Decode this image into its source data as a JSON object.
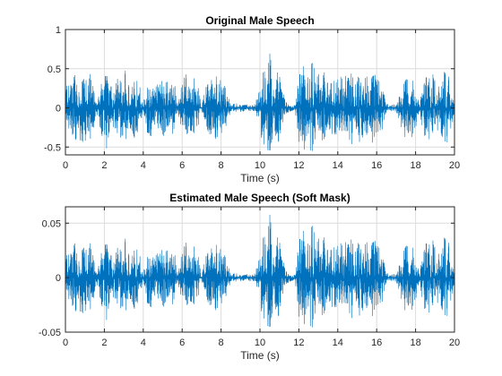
{
  "chart_data": [
    {
      "type": "line",
      "title": "Original Male Speech",
      "xlabel": "Time (s)",
      "ylabel": "",
      "xlim": [
        0,
        20
      ],
      "ylim": [
        -0.6,
        1
      ],
      "xticks": [
        0,
        2,
        4,
        6,
        8,
        10,
        12,
        14,
        16,
        18,
        20
      ],
      "xtick_labels": [
        "0",
        "2",
        "4",
        "6",
        "8",
        "10",
        "12",
        "14",
        "16",
        "18",
        "20"
      ],
      "yticks": [
        -0.5,
        0,
        0.5,
        1
      ],
      "ytick_labels": [
        "-0.5",
        "0",
        "0.5",
        "1"
      ],
      "grid": true,
      "series": [
        {
          "color": "#0072BD",
          "envelope": {
            "t": [
              0,
              0.2,
              0.5,
              0.7,
              0.9,
              1.1,
              1.3,
              1.6,
              1.9,
              2.1,
              2.3,
              2.5,
              2.7,
              2.9,
              3.1,
              3.3,
              3.5,
              3.8,
              4.0,
              4.2,
              4.4,
              4.6,
              4.8,
              5.0,
              5.2,
              5.4,
              5.6,
              5.8,
              6.0,
              6.2,
              6.4,
              6.6,
              6.8,
              7.0,
              7.2,
              7.4,
              7.6,
              7.8,
              8.0,
              8.2,
              8.5,
              8.8,
              9.1,
              9.4,
              9.7,
              9.9,
              10.1,
              10.3,
              10.5,
              10.7,
              10.9,
              11.1,
              11.3,
              11.5,
              11.8,
              12.1,
              12.3,
              12.5,
              12.7,
              12.9,
              13.1,
              13.3,
              13.5,
              13.7,
              13.9,
              14.1,
              14.3,
              14.5,
              14.7,
              14.9,
              15.1,
              15.3,
              15.5,
              15.7,
              15.9,
              16.1,
              16.3,
              16.5,
              16.8,
              17.0,
              17.2,
              17.4,
              17.6,
              17.8,
              18.0,
              18.2,
              18.4,
              18.6,
              18.8,
              19.0,
              19.2,
              19.4,
              19.6,
              19.8,
              20.0
            ],
            "amp": [
              0.25,
              0.32,
              0.45,
              0.36,
              0.48,
              0.42,
              0.45,
              0.05,
              0.38,
              0.52,
              0.32,
              0.3,
              0.42,
              0.47,
              0.45,
              0.28,
              0.4,
              0.32,
              0.06,
              0.3,
              0.4,
              0.22,
              0.42,
              0.35,
              0.4,
              0.38,
              0.3,
              0.05,
              0.42,
              0.4,
              0.32,
              0.37,
              0.35,
              0.05,
              0.3,
              0.36,
              0.4,
              0.44,
              0.38,
              0.3,
              0.05,
              0.06,
              0.05,
              0.04,
              0.05,
              0.15,
              0.52,
              0.45,
              0.72,
              0.3,
              0.55,
              0.35,
              0.1,
              0.05,
              0.04,
              0.58,
              0.5,
              0.4,
              0.7,
              0.32,
              0.55,
              0.44,
              0.38,
              0.42,
              0.35,
              0.45,
              0.38,
              0.4,
              0.5,
              0.3,
              0.45,
              0.4,
              0.42,
              0.38,
              0.5,
              0.36,
              0.3,
              0.05,
              0.04,
              0.05,
              0.18,
              0.4,
              0.35,
              0.38,
              0.25,
              0.06,
              0.4,
              0.42,
              0.45,
              0.35,
              0.3,
              0.4,
              0.55,
              0.3,
              0.06
            ]
          }
        }
      ]
    },
    {
      "type": "line",
      "title": "Estimated Male Speech (Soft Mask)",
      "xlabel": "Time (s)",
      "ylabel": "",
      "xlim": [
        0,
        20
      ],
      "ylim": [
        -0.05,
        0.065
      ],
      "xticks": [
        0,
        2,
        4,
        6,
        8,
        10,
        12,
        14,
        16,
        18,
        20
      ],
      "xtick_labels": [
        "0",
        "2",
        "4",
        "6",
        "8",
        "10",
        "12",
        "14",
        "16",
        "18",
        "20"
      ],
      "yticks": [
        -0.05,
        0,
        0.05
      ],
      "ytick_labels": [
        "-0.05",
        "0",
        "0.05"
      ],
      "grid": true,
      "series": [
        {
          "color": "#0072BD",
          "envelope": {
            "t": [
              0,
              0.2,
              0.5,
              0.7,
              0.9,
              1.1,
              1.3,
              1.6,
              1.9,
              2.1,
              2.3,
              2.5,
              2.7,
              2.9,
              3.1,
              3.3,
              3.5,
              3.8,
              4.0,
              4.2,
              4.4,
              4.6,
              4.8,
              5.0,
              5.2,
              5.4,
              5.6,
              5.8,
              6.0,
              6.2,
              6.4,
              6.6,
              6.8,
              7.0,
              7.2,
              7.4,
              7.6,
              7.8,
              8.0,
              8.2,
              8.5,
              8.8,
              9.1,
              9.4,
              9.7,
              9.9,
              10.1,
              10.3,
              10.5,
              10.7,
              10.9,
              11.1,
              11.3,
              11.5,
              11.8,
              12.1,
              12.3,
              12.5,
              12.7,
              12.9,
              13.1,
              13.3,
              13.5,
              13.7,
              13.9,
              14.1,
              14.3,
              14.5,
              14.7,
              14.9,
              15.1,
              15.3,
              15.5,
              15.7,
              15.9,
              16.1,
              16.3,
              16.5,
              16.8,
              17.0,
              17.2,
              17.4,
              17.6,
              17.8,
              18.0,
              18.2,
              18.4,
              18.6,
              18.8,
              19.0,
              19.2,
              19.4,
              19.6,
              19.8,
              20.0
            ],
            "amp": [
              0.018,
              0.024,
              0.034,
              0.027,
              0.036,
              0.03,
              0.033,
              0.004,
              0.028,
              0.039,
              0.024,
              0.022,
              0.031,
              0.035,
              0.034,
              0.021,
              0.03,
              0.024,
              0.004,
              0.022,
              0.03,
              0.017,
              0.031,
              0.026,
              0.03,
              0.028,
              0.022,
              0.004,
              0.031,
              0.03,
              0.024,
              0.028,
              0.026,
              0.004,
              0.022,
              0.027,
              0.03,
              0.033,
              0.028,
              0.022,
              0.004,
              0.004,
              0.003,
              0.003,
              0.004,
              0.012,
              0.042,
              0.036,
              0.06,
              0.024,
              0.045,
              0.028,
              0.008,
              0.004,
              0.003,
              0.048,
              0.04,
              0.032,
              0.058,
              0.026,
              0.046,
              0.036,
              0.03,
              0.034,
              0.028,
              0.036,
              0.03,
              0.032,
              0.04,
              0.024,
              0.036,
              0.032,
              0.034,
              0.03,
              0.04,
              0.029,
              0.024,
              0.004,
              0.003,
              0.004,
              0.014,
              0.032,
              0.028,
              0.03,
              0.02,
              0.005,
              0.032,
              0.034,
              0.036,
              0.028,
              0.024,
              0.032,
              0.044,
              0.024,
              0.005
            ]
          }
        }
      ]
    }
  ]
}
